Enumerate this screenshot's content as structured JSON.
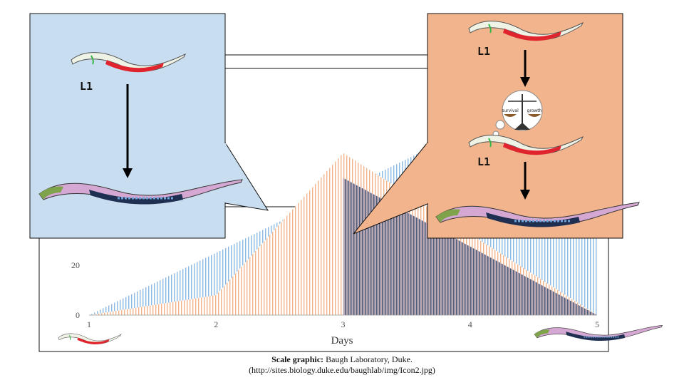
{
  "chart_data": {
    "type": "area",
    "xlabel": "Days",
    "x_ticks": [
      "1",
      "2",
      "3",
      "4",
      "5"
    ],
    "y_ticks": [
      "0",
      "20"
    ],
    "xlim": [
      1,
      5
    ],
    "ylim": [
      0,
      100
    ],
    "series": [
      {
        "color": "#5b9bd5",
        "x": [
          1,
          5
        ],
        "y": [
          0,
          100
        ]
      },
      {
        "color": "#f4a46a",
        "x": [
          1,
          2,
          3,
          5
        ],
        "y": [
          0,
          8,
          65,
          0
        ]
      },
      {
        "color": "#4a5a7a",
        "x": [
          3,
          5
        ],
        "y": [
          55,
          0
        ]
      }
    ]
  },
  "callouts": {
    "left": {
      "stage_top": "L1",
      "bg": "#c9ddf0"
    },
    "right": {
      "stage_top": "L1",
      "stage_mid": "L1",
      "bg": "#f2b48c",
      "scale_left": "survival",
      "scale_right": "growth"
    }
  },
  "caption": {
    "label": "Scale graphic:",
    "credit": "Baugh Laboratory, Duke.",
    "url": "(http://sites.biology.duke.edu/baughlab/img/Icon2.jpg)"
  }
}
